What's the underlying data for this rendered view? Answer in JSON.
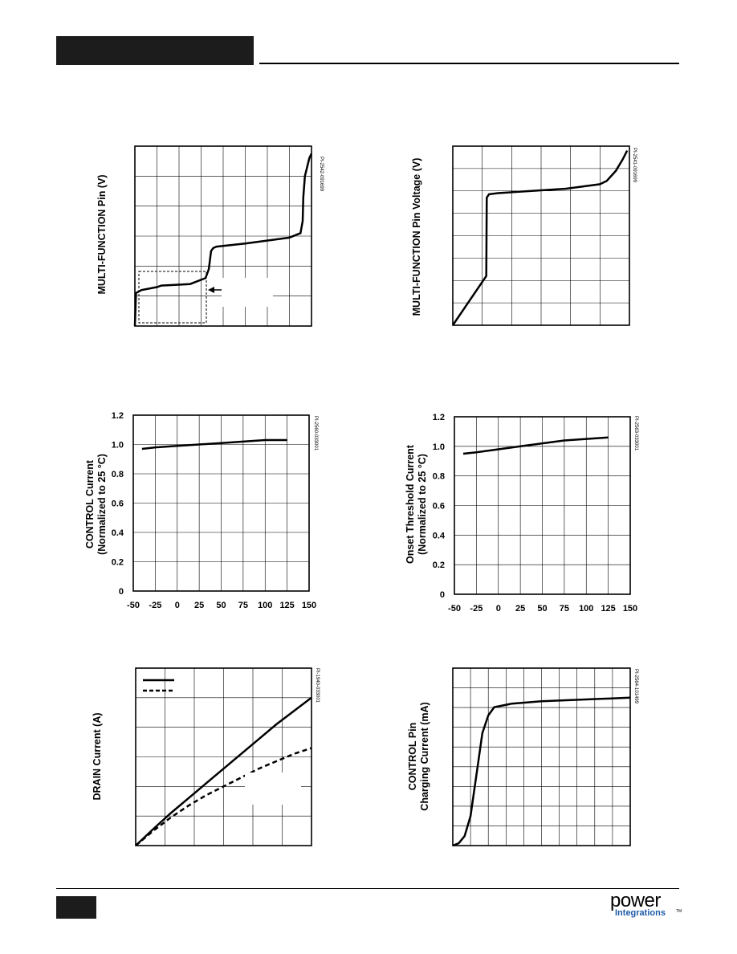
{
  "header": {
    "bar_color": "#1c1c1c"
  },
  "footer": {
    "logo": {
      "word_power": "power",
      "word_integrations": "Integrations",
      "tm": "TM",
      "accent_color": "#1e5aa8"
    }
  },
  "figures": {
    "mf_pin_wide": {
      "ylabel": "MULTI-FUNCTION Pin (V)",
      "code": "PI-2542-091699"
    },
    "mf_pin_voltage": {
      "ylabel": "MULTI-FUNCTION Pin Voltage (V)",
      "code": "PI-2541-091699"
    },
    "control_current": {
      "ylabel1": "CONTROL Current",
      "ylabel2": "(Normalized to 25 °C)",
      "code": "PI-2560-033001"
    },
    "onset_threshold": {
      "ylabel1": "Onset Threshold Current",
      "ylabel2": "(Normalized to 25 °C)",
      "code": "PI-2563-033001"
    },
    "drain_current": {
      "ylabel": "DRAIN Current (A)",
      "code": "PI-1940-033001"
    },
    "control_charging": {
      "ylabel1": "CONTROL Pin",
      "ylabel2": "Charging Current (mA)",
      "code": "PI-2564-101499"
    }
  },
  "chart_data": [
    {
      "type": "line",
      "series": [
        {
          "x": [
            0,
            0.5,
            3,
            10,
            12,
            25,
            32,
            33.5,
            34.5,
            35.5,
            37,
            50,
            70,
            75,
            76,
            76.3,
            77,
            79,
            80
          ],
          "y": [
            0,
            1.1,
            1.2,
            1.3,
            1.35,
            1.4,
            1.6,
            1.9,
            2.5,
            2.6,
            2.65,
            2.75,
            2.95,
            3.1,
            3.5,
            4.3,
            5.0,
            5.6,
            5.75
          ]
        }
      ]
    },
    {
      "type": "line",
      "series": [
        {
          "x": [
            0,
            14.8,
            15,
            16,
            20,
            50,
            65,
            68,
            72,
            75,
            77
          ],
          "y": [
            0,
            2.2,
            5.7,
            5.85,
            5.9,
            6.1,
            6.3,
            6.45,
            6.9,
            7.4,
            7.8
          ]
        }
      ]
    },
    {
      "type": "line",
      "xlim": [
        -50,
        150
      ],
      "ylim": [
        0,
        1.2
      ],
      "x_ticks": [
        "-50",
        "-25",
        "0",
        "25",
        "50",
        "75",
        "100",
        "125",
        "150"
      ],
      "y_ticks": [
        "0",
        "0.2",
        "0.4",
        "0.6",
        "0.8",
        "1.0",
        "1.2"
      ],
      "series": [
        {
          "x": [
            -40,
            -25,
            0,
            25,
            50,
            75,
            100,
            125
          ],
          "y": [
            0.97,
            0.98,
            0.99,
            1.0,
            1.01,
            1.02,
            1.03,
            1.03
          ]
        }
      ]
    },
    {
      "type": "line",
      "xlim": [
        -50,
        150
      ],
      "ylim": [
        0,
        1.2
      ],
      "x_ticks": [
        "-50",
        "-25",
        "0",
        "25",
        "50",
        "75",
        "100",
        "125",
        "150"
      ],
      "y_ticks": [
        "0",
        "0.2",
        "0.4",
        "0.6",
        "0.8",
        "1.0",
        "1.2"
      ],
      "series": [
        {
          "x": [
            -40,
            -25,
            0,
            25,
            50,
            75,
            100,
            125
          ],
          "y": [
            0.95,
            0.96,
            0.98,
            1.0,
            1.02,
            1.04,
            1.05,
            1.06
          ]
        }
      ]
    },
    {
      "type": "line",
      "legend": "top-left",
      "series": [
        {
          "x": [
            0,
            1,
            2,
            3,
            4,
            5,
            6,
            7,
            8,
            9,
            10
          ],
          "y": [
            0,
            0.56,
            1.1,
            1.6,
            2.1,
            2.6,
            3.1,
            3.6,
            4.1,
            4.55,
            5.0
          ]
        },
        {
          "x": [
            0,
            1,
            2,
            3,
            4,
            5,
            6,
            7,
            8,
            9,
            10
          ],
          "y": [
            0,
            0.5,
            0.95,
            1.35,
            1.7,
            2.0,
            2.3,
            2.6,
            2.85,
            3.1,
            3.3
          ]
        }
      ]
    },
    {
      "type": "line",
      "series": [
        {
          "x": [
            0,
            1,
            2,
            3,
            4,
            5,
            6,
            7,
            10,
            15,
            20,
            25,
            30
          ],
          "y": [
            0,
            0.02,
            0.08,
            0.25,
            0.6,
            0.95,
            1.1,
            1.17,
            1.2,
            1.22,
            1.23,
            1.24,
            1.25
          ]
        }
      ]
    }
  ]
}
